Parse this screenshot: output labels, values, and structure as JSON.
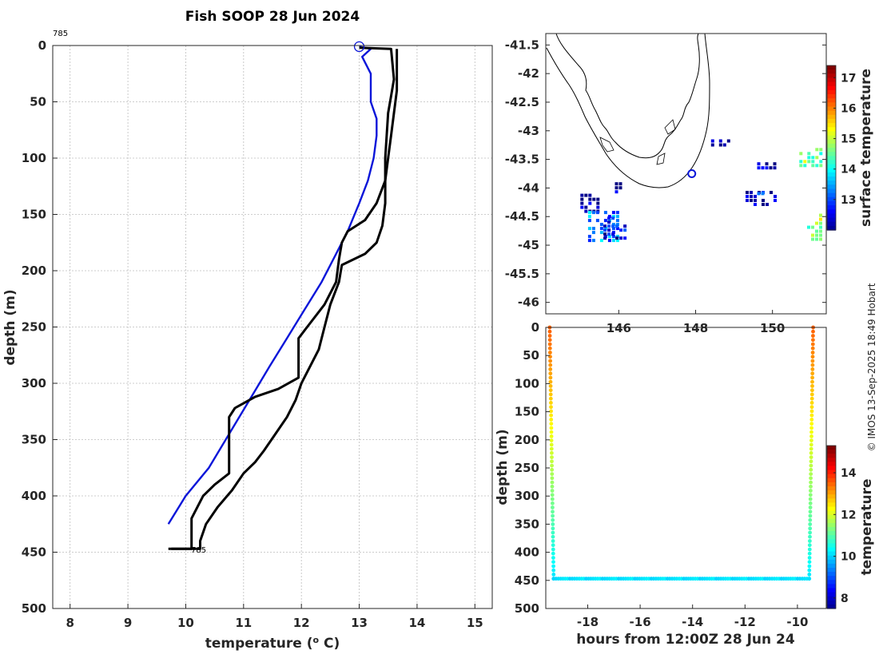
{
  "credit": "© IMOS 13-Sep-2025 18:49 Hobart",
  "chart_data": [
    {
      "id": "profile",
      "type": "line",
      "title": "Fish SOOP 28 Jun 2024",
      "xlabel": "temperature (",
      "xlabel_sup": "o",
      "xlabel_end": " C)",
      "ylabel": "depth (m)",
      "xlim": [
        7.7,
        15.3
      ],
      "ylim": [
        0,
        500
      ],
      "y_reversed": true,
      "xticks": [
        "8",
        "9",
        "10",
        "11",
        "12",
        "13",
        "14",
        "15"
      ],
      "yticks": [
        "0",
        "50",
        "100",
        "150",
        "200",
        "250",
        "300",
        "350",
        "400",
        "450",
        "500"
      ],
      "annotation_top": "785",
      "annotation_bottom": "785",
      "marker": {
        "x": 13.0,
        "y": 1
      },
      "series": [
        {
          "name": "climatology",
          "color": "#0a15d9",
          "points": [
            [
              13.0,
              1
            ],
            [
              13.2,
              3
            ],
            [
              13.05,
              10
            ],
            [
              13.2,
              25
            ],
            [
              13.2,
              50
            ],
            [
              13.3,
              65
            ],
            [
              13.3,
              80
            ],
            [
              13.25,
              100
            ],
            [
              13.15,
              120
            ],
            [
              13.0,
              140
            ],
            [
              12.8,
              165
            ],
            [
              12.6,
              185
            ],
            [
              12.35,
              210
            ],
            [
              12.05,
              235
            ],
            [
              11.75,
              260
            ],
            [
              11.45,
              285
            ],
            [
              11.1,
              315
            ],
            [
              10.75,
              345
            ],
            [
              10.4,
              375
            ],
            [
              10.0,
              400
            ],
            [
              9.7,
              425
            ]
          ]
        },
        {
          "name": "profile-down",
          "color": "#000000",
          "points": [
            [
              13.0,
              2
            ],
            [
              13.55,
              3
            ],
            [
              13.6,
              30
            ],
            [
              13.55,
              45
            ],
            [
              13.5,
              60
            ],
            [
              13.45,
              100
            ],
            [
              13.45,
              140
            ],
            [
              13.4,
              160
            ],
            [
              13.3,
              175
            ],
            [
              13.1,
              185
            ],
            [
              12.9,
              190
            ],
            [
              12.7,
              195
            ],
            [
              12.65,
              210
            ],
            [
              12.5,
              230
            ],
            [
              12.4,
              250
            ],
            [
              12.3,
              270
            ],
            [
              12.1,
              290
            ],
            [
              12.0,
              300
            ],
            [
              11.9,
              315
            ],
            [
              11.75,
              330
            ],
            [
              11.55,
              345
            ],
            [
              11.35,
              360
            ],
            [
              11.2,
              370
            ],
            [
              11.0,
              380
            ],
            [
              10.8,
              395
            ],
            [
              10.55,
              410
            ],
            [
              10.35,
              425
            ],
            [
              10.25,
              440
            ],
            [
              10.25,
              447
            ],
            [
              9.75,
              447
            ]
          ]
        },
        {
          "name": "profile-up",
          "color": "#000000",
          "points": [
            [
              13.65,
              3
            ],
            [
              13.65,
              40
            ],
            [
              13.6,
              60
            ],
            [
              13.55,
              80
            ],
            [
              13.5,
              100
            ],
            [
              13.45,
              120
            ],
            [
              13.3,
              140
            ],
            [
              13.1,
              155
            ],
            [
              12.8,
              165
            ],
            [
              12.7,
              175
            ],
            [
              12.65,
              190
            ],
            [
              12.6,
              210
            ],
            [
              12.4,
              230
            ],
            [
              12.1,
              250
            ],
            [
              11.95,
              260
            ],
            [
              11.95,
              280
            ],
            [
              11.95,
              295
            ],
            [
              11.6,
              305
            ],
            [
              11.2,
              312
            ],
            [
              10.85,
              322
            ],
            [
              10.75,
              330
            ],
            [
              10.75,
              360
            ],
            [
              10.75,
              380
            ],
            [
              10.5,
              390
            ],
            [
              10.3,
              400
            ],
            [
              10.1,
              420
            ],
            [
              10.1,
              447
            ],
            [
              9.7,
              447
            ]
          ]
        }
      ]
    },
    {
      "id": "map",
      "type": "heatmap",
      "xlim": [
        144.1,
        151.4
      ],
      "ylim": [
        -46.2,
        -41.3
      ],
      "yticks": [
        "-41.5",
        "-42",
        "-42.5",
        "-43",
        "-43.5",
        "-44",
        "-44.5",
        "-45",
        "-45.5",
        "-46"
      ],
      "xticks": [
        "146",
        "148",
        "150"
      ],
      "colorbar_label": "surface temperature",
      "colorbar_range": [
        12.0,
        17.4
      ],
      "colorbar_ticks": [
        "13",
        "14",
        "15",
        "16",
        "17"
      ],
      "station": {
        "lon": 147.9,
        "lat": -43.75
      },
      "patches": [
        {
          "lon": [
            145.0,
            145.5
          ],
          "lat": [
            -44.1,
            -44.4
          ],
          "temp": 12.1
        },
        {
          "lon": [
            145.2,
            146.0
          ],
          "lat": [
            -44.4,
            -44.9
          ],
          "temp": 13.4
        },
        {
          "lon": [
            145.6,
            146.2
          ],
          "lat": [
            -44.5,
            -44.9
          ],
          "temp": 12.5
        },
        {
          "lon": [
            145.9,
            146.1
          ],
          "lat": [
            -43.9,
            -44.05
          ],
          "temp": 12.1
        },
        {
          "lon": [
            149.6,
            150.1
          ],
          "lat": [
            -43.55,
            -43.65
          ],
          "temp": 12.2
        },
        {
          "lon": [
            149.3,
            150.1
          ],
          "lat": [
            -44.05,
            -44.3
          ],
          "temp": 12.4
        },
        {
          "lon": [
            149.6,
            149.8
          ],
          "lat": [
            -44.0,
            -44.2
          ],
          "temp": 13.5
        },
        {
          "lon": [
            150.7,
            151.3
          ],
          "lat": [
            -43.3,
            -43.6
          ],
          "temp": 14.8
        },
        {
          "lon": [
            150.9,
            151.3
          ],
          "lat": [
            -44.45,
            -44.9
          ],
          "temp": 14.9
        },
        {
          "lon": [
            148.4,
            148.9
          ],
          "lat": [
            -43.15,
            -43.25
          ],
          "temp": 12.1
        }
      ]
    },
    {
      "id": "timeseries",
      "type": "scatter",
      "xlabel": "hours from 12:00Z 28 Jun 24",
      "ylabel": "depth (m)",
      "xlim": [
        -19.6,
        -8.9
      ],
      "ylim": [
        0,
        500
      ],
      "y_reversed": true,
      "xticks": [
        "-18",
        "-16",
        "-14",
        "-12",
        "-10"
      ],
      "yticks": [
        "0",
        "50",
        "100",
        "150",
        "200",
        "250",
        "300",
        "350",
        "400",
        "450",
        "500"
      ],
      "colorbar_label": "temperature",
      "colorbar_range": [
        7.5,
        15.3
      ],
      "colorbar_ticks": [
        "8",
        "10",
        "12",
        "14"
      ],
      "descent": {
        "t": [
          -19.45,
          -19.3
        ],
        "temp": [
          13.6,
          10.2
        ]
      },
      "bottom": {
        "t": [
          -19.3,
          -9.55
        ],
        "depth": 447,
        "temp": 10.1
      },
      "ascent": {
        "t": [
          -9.55,
          -9.4
        ],
        "temp": [
          10.2,
          13.6
        ]
      }
    }
  ]
}
